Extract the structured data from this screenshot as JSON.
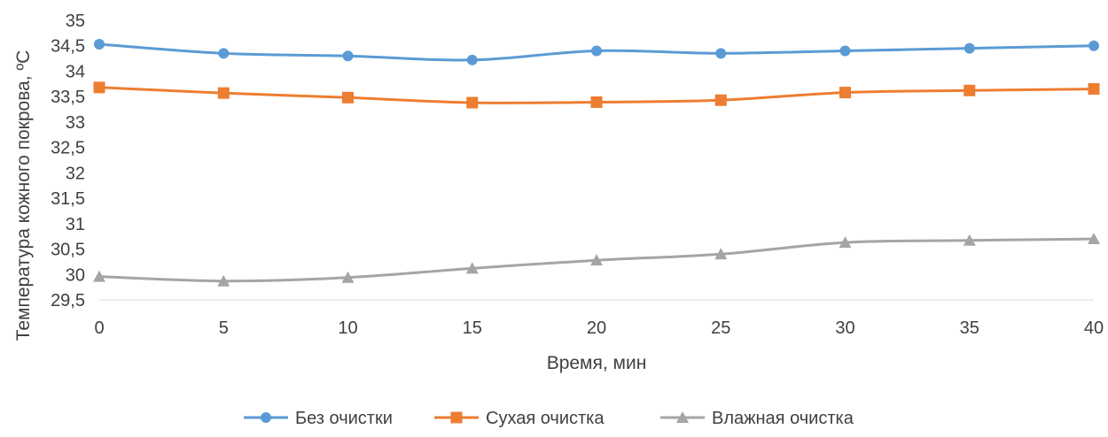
{
  "chart_data": {
    "type": "line",
    "title": "",
    "xlabel": "Время, мин",
    "ylabel": "Температура кожного покрова, ºС",
    "x": [
      0,
      5,
      10,
      15,
      20,
      25,
      30,
      35,
      40
    ],
    "x_tick_labels": [
      "0",
      "5",
      "10",
      "15",
      "20",
      "25",
      "30",
      "35",
      "40"
    ],
    "xlim": [
      0,
      40
    ],
    "ylim": [
      29.5,
      35
    ],
    "y_tick_labels": [
      "29,5",
      "30",
      "30,5",
      "31",
      "31,5",
      "32",
      "32,5",
      "33",
      "33,5",
      "34",
      "34,5",
      "35"
    ],
    "y_ticks": [
      29.5,
      30,
      30.5,
      31,
      31.5,
      32,
      32.5,
      33,
      33.5,
      34,
      34.5,
      35
    ],
    "grid": false,
    "legend_position": "bottom",
    "series": [
      {
        "name": "Без очистки",
        "color": "#5B9BD5",
        "marker": "circle",
        "values": [
          34.53,
          34.35,
          34.3,
          34.22,
          34.4,
          34.35,
          34.4,
          34.45,
          34.5
        ]
      },
      {
        "name": "Сухая очистка",
        "color": "#ED7D31",
        "marker": "square",
        "values": [
          33.68,
          33.57,
          33.48,
          33.38,
          33.39,
          33.43,
          33.58,
          33.62,
          33.65
        ]
      },
      {
        "name": "Влажная очистка",
        "color": "#A5A5A5",
        "marker": "triangle",
        "values": [
          29.96,
          29.87,
          29.94,
          30.12,
          30.28,
          30.4,
          30.63,
          30.67,
          30.7
        ]
      }
    ]
  }
}
